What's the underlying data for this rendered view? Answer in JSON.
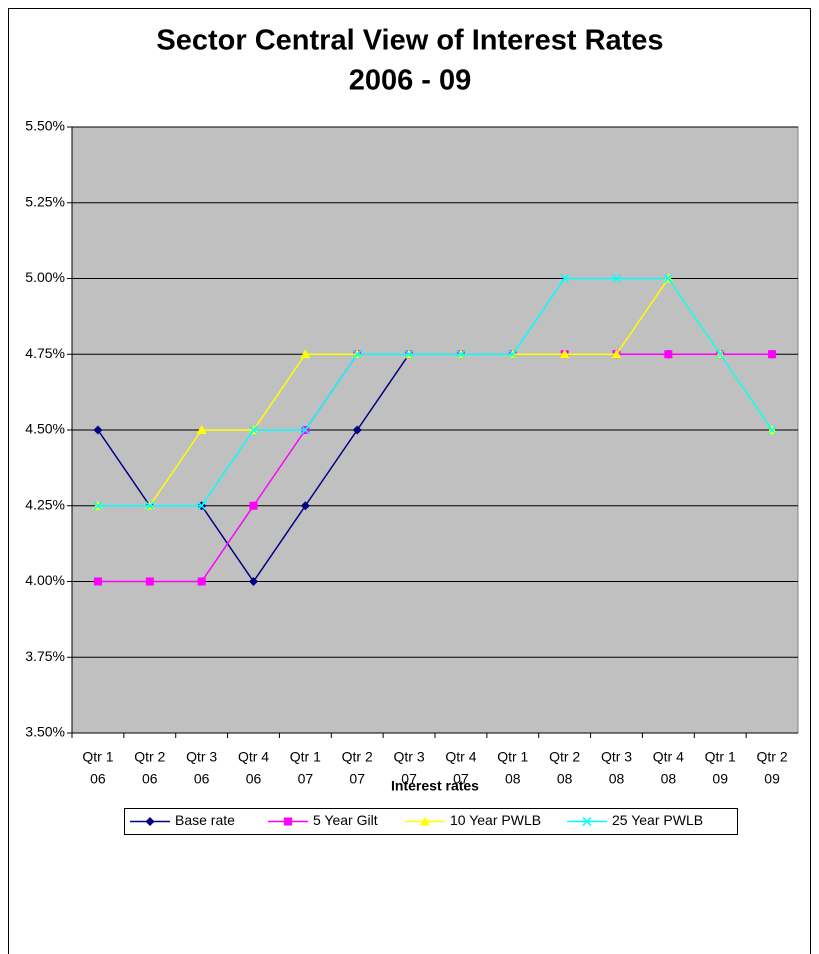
{
  "chart_data": {
    "type": "line",
    "title": [
      "Sector Central View of Interest Rates",
      "2006 - 09"
    ],
    "x_label": "Interest rates",
    "categories": [
      [
        "Qtr 1",
        "06"
      ],
      [
        "Qtr 2",
        "06"
      ],
      [
        "Qtr 3",
        "06"
      ],
      [
        "Qtr 4",
        "06"
      ],
      [
        "Qtr 1",
        "07"
      ],
      [
        "Qtr 2",
        "07"
      ],
      [
        "Qtr 3",
        "07"
      ],
      [
        "Qtr 4",
        "07"
      ],
      [
        "Qtr 1",
        "08"
      ],
      [
        "Qtr 2",
        "08"
      ],
      [
        "Qtr 3",
        "08"
      ],
      [
        "Qtr 4",
        "08"
      ],
      [
        "Qtr 1",
        "09"
      ],
      [
        "Qtr 2",
        "09"
      ]
    ],
    "series": [
      {
        "name": "Base rate",
        "color": "#000080",
        "marker": "diamond",
        "values": [
          4.5,
          4.25,
          4.25,
          4.0,
          4.25,
          4.5,
          4.75,
          4.75,
          4.75,
          4.75,
          4.75,
          4.75,
          4.75,
          4.75
        ]
      },
      {
        "name": "5 Year Gilt",
        "color": "#ff00ff",
        "marker": "square",
        "values": [
          4.0,
          4.0,
          4.0,
          4.25,
          4.5,
          4.75,
          4.75,
          4.75,
          4.75,
          4.75,
          4.75,
          4.75,
          4.75,
          4.75
        ]
      },
      {
        "name": "10 Year PWLB",
        "color": "#ffff00",
        "marker": "triangle",
        "values": [
          4.25,
          4.25,
          4.5,
          4.5,
          4.75,
          4.75,
          4.75,
          4.75,
          4.75,
          4.75,
          4.75,
          5.0,
          4.75,
          4.5
        ]
      },
      {
        "name": "25 Year PWLB",
        "color": "#00ffff",
        "marker": "x",
        "values": [
          4.25,
          4.25,
          4.25,
          4.5,
          4.5,
          4.75,
          4.75,
          4.75,
          4.75,
          5.0,
          5.0,
          5.0,
          4.75,
          4.5
        ]
      }
    ],
    "ylim": [
      3.5,
      5.5
    ],
    "yticks": [
      {
        "value": 3.5,
        "label": "3.50%"
      },
      {
        "value": 3.75,
        "label": "3.75%"
      },
      {
        "value": 4.0,
        "label": "4.00%"
      },
      {
        "value": 4.25,
        "label": "4.25%"
      },
      {
        "value": 4.5,
        "label": "4.50%"
      },
      {
        "value": 4.75,
        "label": "4.75%"
      },
      {
        "value": 5.0,
        "label": "5.00%"
      },
      {
        "value": 5.25,
        "label": "5.25%"
      },
      {
        "value": 5.5,
        "label": "5.50%"
      }
    ],
    "grid": true,
    "plot_background": "#c0c0c0",
    "legend": "bottom"
  }
}
